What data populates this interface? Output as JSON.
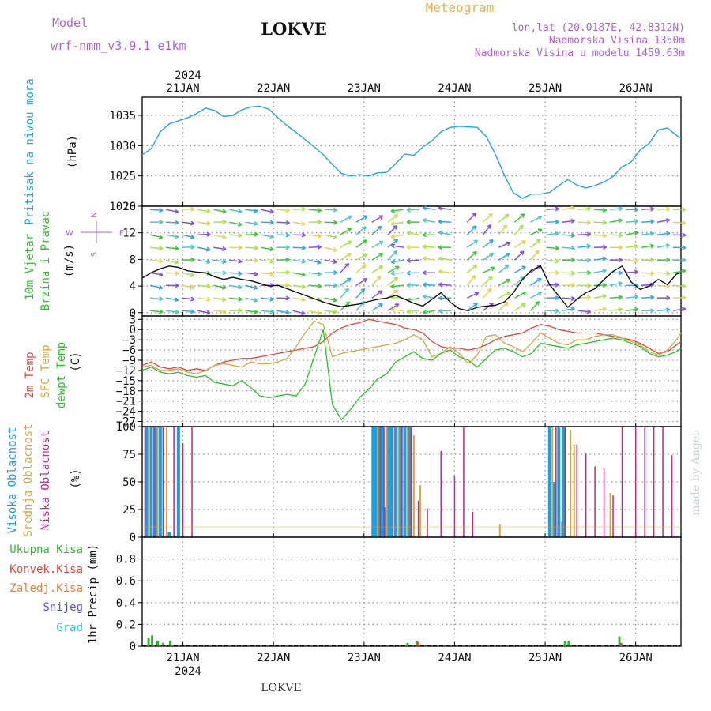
{
  "header": {
    "model_label": "Model",
    "model_name": "wrf-nmm_v3.9.1 e1km",
    "station": "LOKVE",
    "product": "Meteogram",
    "coords": "lon,lat (20.0187E, 42.8312N)",
    "elevation": "Nadmorska Visina 1350m",
    "model_elevation": "Nadmorska Visina u modelu 1459.63m"
  },
  "footer": {
    "station": "LOKVE",
    "credit": "made by Angel"
  },
  "time_axis": {
    "year": "2024",
    "labels": [
      "21JAN",
      "22JAN",
      "23JAN",
      "24JAN",
      "25JAN",
      "26JAN"
    ],
    "day_positions": [
      1,
      2,
      3,
      4,
      5,
      6
    ],
    "range": [
      0.55,
      6.5
    ]
  },
  "colors": {
    "pressure": "#1fa5e0",
    "t2m": "#e8453c",
    "tsfc": "#d6a540",
    "dewpoint": "#22c722",
    "cloud_high": "#1b9fe0",
    "cloud_mid": "#d6a540",
    "cloud_low": "#c0288c",
    "precip_total": "#2eb82e",
    "precip_conv": "#e8453c",
    "precip_frozen": "#f07a3a",
    "precip_snow": "#5050d8",
    "precip_graupel": "#30c0c0"
  },
  "chart_data": [
    {
      "type": "line",
      "name": "pressure",
      "ylabel": [
        "Pritisak na nivou mora",
        "(hPa)"
      ],
      "ylim": [
        1020,
        1038
      ],
      "yticks": [
        1020,
        1025,
        1030,
        1035
      ],
      "grid": true,
      "series": [
        {
          "key": "pressure",
          "x": [
            0.55,
            0.65,
            0.75,
            0.85,
            0.95,
            1.05,
            1.15,
            1.25,
            1.35,
            1.45,
            1.55,
            1.65,
            1.75,
            1.85,
            1.95,
            2.05,
            2.15,
            2.25,
            2.35,
            2.45,
            2.55,
            2.65,
            2.75,
            2.85,
            2.95,
            3.05,
            3.15,
            3.25,
            3.35,
            3.45,
            3.55,
            3.65,
            3.75,
            3.85,
            3.95,
            4.05,
            4.15,
            4.25,
            4.35,
            4.45,
            4.55,
            4.65,
            4.75,
            4.85,
            4.95,
            5.05,
            5.15,
            5.25,
            5.35,
            5.45,
            5.55,
            5.65,
            5.75,
            5.85,
            5.95,
            6.05,
            6.15,
            6.25,
            6.35,
            6.45,
            6.5
          ],
          "values": [
            1028.5,
            1029.5,
            1032.3,
            1033.6,
            1034.1,
            1034.6,
            1035.3,
            1036.2,
            1035.8,
            1034.8,
            1035.0,
            1035.9,
            1036.4,
            1036.5,
            1036.0,
            1034.6,
            1033.3,
            1032.2,
            1031.0,
            1029.8,
            1028.5,
            1026.9,
            1025.4,
            1025.0,
            1025.2,
            1025.0,
            1025.5,
            1025.6,
            1027.0,
            1028.6,
            1028.4,
            1029.8,
            1030.8,
            1032.3,
            1033.0,
            1033.2,
            1033.1,
            1033.0,
            1031.5,
            1028.6,
            1025.1,
            1022.2,
            1021.3,
            1022.0,
            1022.0,
            1022.3,
            1023.4,
            1024.4,
            1023.5,
            1023.0,
            1023.4,
            1024.0,
            1024.9,
            1026.5,
            1027.3,
            1029.3,
            1030.4,
            1032.6,
            1032.9,
            1031.7,
            1031.2
          ]
        }
      ]
    },
    {
      "type": "line",
      "name": "wind",
      "ylabel": [
        "10m Vjetar",
        "Brzina i Pravac",
        "(m/s)"
      ],
      "compass": [
        "N",
        "E",
        "S",
        "W"
      ],
      "ylim": [
        -0.5,
        16
      ],
      "yticks": [
        0,
        4,
        8,
        12,
        16
      ],
      "grid": true,
      "series": [
        {
          "key": "wind_speed",
          "x": [
            0.55,
            0.65,
            0.75,
            0.85,
            0.95,
            1.05,
            1.15,
            1.25,
            1.35,
            1.45,
            1.55,
            1.65,
            1.75,
            1.85,
            1.95,
            2.05,
            2.15,
            2.25,
            2.35,
            2.45,
            2.55,
            2.65,
            2.75,
            2.85,
            2.95,
            3.05,
            3.15,
            3.25,
            3.35,
            3.45,
            3.55,
            3.65,
            3.75,
            3.85,
            3.95,
            4.05,
            4.15,
            4.25,
            4.35,
            4.45,
            4.55,
            4.65,
            4.75,
            4.85,
            4.95,
            5.05,
            5.15,
            5.25,
            5.35,
            5.45,
            5.55,
            5.65,
            5.75,
            5.85,
            5.95,
            6.05,
            6.15,
            6.25,
            6.35,
            6.45,
            6.5
          ],
          "values": [
            5.2,
            6.0,
            6.6,
            7.0,
            6.8,
            6.3,
            6.1,
            6.0,
            5.4,
            5.0,
            5.3,
            5.0,
            4.8,
            4.4,
            4.0,
            4.1,
            3.6,
            3.1,
            2.6,
            2.1,
            1.6,
            1.2,
            0.9,
            1.1,
            1.3,
            1.7,
            2.0,
            2.2,
            2.6,
            2.0,
            1.4,
            1.0,
            2.0,
            3.0,
            1.6,
            0.6,
            0.3,
            0.8,
            1.0,
            1.1,
            1.6,
            3.0,
            5.0,
            6.4,
            7.0,
            4.2,
            2.5,
            0.8,
            2.0,
            3.0,
            3.6,
            5.0,
            6.2,
            7.0,
            4.6,
            3.5,
            4.0,
            5.0,
            4.2,
            5.8,
            6.0
          ]
        }
      ]
    },
    {
      "type": "line",
      "name": "temperature",
      "ylabel": [
        "2m Temp",
        "SFC Temp",
        "dewpt Temp",
        "(C)"
      ],
      "ylim": [
        -28.5,
        4
      ],
      "yticks": [
        3,
        0,
        -3,
        -6,
        -9,
        -12,
        -15,
        -18,
        -21,
        -24,
        -27
      ],
      "grid": true,
      "series": [
        {
          "key": "t2m",
          "x": [
            0.55,
            0.65,
            0.75,
            0.85,
            0.95,
            1.05,
            1.15,
            1.25,
            1.35,
            1.45,
            1.55,
            1.65,
            1.75,
            1.85,
            1.95,
            2.05,
            2.15,
            2.25,
            2.35,
            2.45,
            2.55,
            2.65,
            2.75,
            2.85,
            2.95,
            3.05,
            3.15,
            3.25,
            3.35,
            3.45,
            3.55,
            3.65,
            3.75,
            3.85,
            3.95,
            4.05,
            4.15,
            4.25,
            4.35,
            4.45,
            4.55,
            4.65,
            4.75,
            4.85,
            4.95,
            5.05,
            5.15,
            5.25,
            5.35,
            5.45,
            5.55,
            5.65,
            5.75,
            5.85,
            5.95,
            6.05,
            6.15,
            6.25,
            6.35,
            6.45,
            6.5
          ],
          "values": [
            -10.5,
            -9.5,
            -11.0,
            -11.5,
            -11.0,
            -12.0,
            -11.5,
            -12.0,
            -10.5,
            -9.5,
            -9.0,
            -8.5,
            -8.5,
            -8.0,
            -7.5,
            -7.0,
            -6.5,
            -6.0,
            -5.5,
            -5.0,
            -3.5,
            -1.0,
            0.5,
            1.5,
            2.0,
            3.0,
            2.5,
            2.0,
            1.5,
            0.5,
            0.0,
            -1.0,
            -3.5,
            -5.0,
            -5.5,
            -5.5,
            -6.0,
            -5.5,
            -4.5,
            -3.0,
            -2.0,
            -1.5,
            -1.0,
            0.5,
            1.5,
            1.0,
            0.0,
            -0.5,
            -1.0,
            -1.0,
            -1.0,
            -1.5,
            -2.0,
            -2.5,
            -3.0,
            -4.0,
            -5.5,
            -7.0,
            -6.5,
            -4.5,
            -3.5
          ]
        },
        {
          "key": "tsfc",
          "x": [
            0.55,
            0.65,
            0.75,
            0.85,
            0.95,
            1.05,
            1.15,
            1.25,
            1.35,
            1.45,
            1.55,
            1.65,
            1.75,
            1.85,
            1.95,
            2.05,
            2.15,
            2.25,
            2.35,
            2.45,
            2.55,
            2.65,
            2.75,
            2.85,
            2.95,
            3.05,
            3.15,
            3.25,
            3.35,
            3.45,
            3.55,
            3.65,
            3.75,
            3.85,
            3.95,
            4.05,
            4.15,
            4.25,
            4.35,
            4.45,
            4.55,
            4.65,
            4.75,
            4.85,
            4.95,
            5.05,
            5.15,
            5.25,
            5.35,
            5.45,
            5.55,
            5.65,
            5.75,
            5.85,
            5.95,
            6.05,
            6.15,
            6.25,
            6.35,
            6.45,
            6.5
          ],
          "values": [
            -11.0,
            -10.5,
            -12.0,
            -12.0,
            -11.5,
            -12.5,
            -13.0,
            -12.0,
            -10.5,
            -10.0,
            -10.5,
            -11.0,
            -9.5,
            -10.0,
            -10.0,
            -9.5,
            -8.5,
            -5.0,
            -1.0,
            2.5,
            1.5,
            -8.0,
            -7.0,
            -6.5,
            -6.0,
            -5.5,
            -5.0,
            -4.5,
            -4.0,
            -3.0,
            -1.5,
            -3.0,
            -8.0,
            -7.0,
            -5.0,
            -7.0,
            -10.0,
            -7.5,
            -2.0,
            -1.5,
            -4.0,
            -5.0,
            -6.5,
            -4.0,
            -1.0,
            -2.5,
            -4.0,
            -4.5,
            -3.0,
            -3.0,
            -2.0,
            -1.5,
            -1.5,
            -2.5,
            -3.5,
            -4.5,
            -6.5,
            -7.5,
            -6.0,
            -3.0,
            -1.0
          ]
        },
        {
          "key": "dewpoint",
          "x": [
            0.55,
            0.65,
            0.75,
            0.85,
            0.95,
            1.05,
            1.15,
            1.25,
            1.35,
            1.45,
            1.55,
            1.65,
            1.75,
            1.85,
            1.95,
            2.05,
            2.15,
            2.25,
            2.35,
            2.45,
            2.55,
            2.65,
            2.75,
            2.85,
            2.95,
            3.05,
            3.15,
            3.25,
            3.35,
            3.45,
            3.55,
            3.65,
            3.75,
            3.85,
            3.95,
            4.05,
            4.15,
            4.25,
            4.35,
            4.45,
            4.55,
            4.65,
            4.75,
            4.85,
            4.95,
            5.05,
            5.15,
            5.25,
            5.35,
            5.45,
            5.55,
            5.65,
            5.75,
            5.85,
            5.95,
            6.05,
            6.15,
            6.25,
            6.35,
            6.45,
            6.5
          ],
          "values": [
            -12.0,
            -11.0,
            -12.5,
            -13.0,
            -12.5,
            -13.5,
            -14.0,
            -13.5,
            -15.5,
            -16.0,
            -16.5,
            -15.0,
            -17.0,
            -19.5,
            -20.0,
            -19.5,
            -19.0,
            -19.5,
            -16.0,
            -8.0,
            0.0,
            -22.0,
            -26.5,
            -23.5,
            -20.0,
            -17.5,
            -14.5,
            -13.0,
            -9.5,
            -8.0,
            -6.5,
            -8.5,
            -9.0,
            -7.0,
            -6.0,
            -8.0,
            -9.0,
            -11.0,
            -8.5,
            -6.0,
            -5.5,
            -6.5,
            -8.0,
            -7.0,
            -4.0,
            -4.5,
            -5.0,
            -5.5,
            -4.5,
            -4.0,
            -3.5,
            -3.0,
            -2.5,
            -3.0,
            -4.0,
            -5.0,
            -7.0,
            -8.0,
            -7.5,
            -6.5,
            -5.5
          ]
        }
      ]
    },
    {
      "type": "bar",
      "name": "clouds",
      "ylabel": [
        "Visoka Oblacnost",
        "Srednja Oblacnost",
        "Niska Oblacnost",
        "(%)"
      ],
      "ylim": [
        0,
        100
      ],
      "yticks": [
        0,
        25,
        50,
        75,
        100
      ],
      "grid": true,
      "series": [
        {
          "key": "cloud_high",
          "x": [
            0.6,
            0.65,
            0.7,
            0.75,
            0.85,
            0.95,
            3.1,
            3.13,
            3.16,
            3.2,
            3.24,
            3.27,
            3.3,
            3.35,
            3.4,
            3.45,
            3.5,
            5.05,
            5.1,
            5.15,
            5.2
          ],
          "values": [
            100,
            100,
            100,
            100,
            5,
            100,
            100,
            100,
            100,
            100,
            27,
            100,
            100,
            100,
            100,
            100,
            100,
            100,
            50,
            100,
            100
          ]
        },
        {
          "key": "cloud_mid",
          "x": [
            0.62,
            0.72,
            0.82,
            3.15,
            3.25,
            3.38,
            3.48,
            3.55,
            3.62,
            4.5,
            5.08,
            5.18,
            5.28,
            5.32,
            5.72
          ],
          "values": [
            100,
            100,
            100,
            100,
            100,
            100,
            100,
            92,
            47,
            12,
            100,
            14,
            97,
            84,
            40
          ]
        },
        {
          "key": "cloud_low",
          "x": [
            0.58,
            0.68,
            0.78,
            0.9,
            1.0,
            1.1,
            3.18,
            3.22,
            3.32,
            3.42,
            3.52,
            3.6,
            3.7,
            3.85,
            4.0,
            4.1,
            4.2,
            5.12,
            5.22,
            5.35,
            5.45,
            5.55,
            5.65,
            5.75,
            5.85,
            6.0,
            6.1,
            6.2,
            6.3,
            6.4
          ],
          "values": [
            100,
            100,
            100,
            100,
            85,
            100,
            100,
            100,
            100,
            100,
            100,
            33,
            26,
            78,
            55,
            100,
            23,
            100,
            100,
            84,
            76,
            64,
            62,
            38,
            100,
            100,
            100,
            100,
            100,
            74
          ]
        }
      ]
    },
    {
      "type": "bar",
      "name": "precipitation",
      "legend": [
        "Ukupna Kisa",
        "Konvek.Kisa",
        "Zaledj.Kisa",
        "Snijeg",
        "Grad"
      ],
      "ylabel": [
        "1hr Precip (mm)"
      ],
      "ylim": [
        0,
        1.0
      ],
      "yticks": [
        0,
        0.2,
        0.4,
        0.6,
        0.8
      ],
      "grid": true,
      "series": [
        {
          "key": "precip_total",
          "x": [
            0.62,
            0.66,
            0.72,
            0.78,
            0.86,
            3.48,
            3.58,
            5.22,
            5.26,
            5.82,
            6.08
          ],
          "values": [
            0.08,
            0.1,
            0.05,
            0.03,
            0.05,
            0.03,
            0.05,
            0.05,
            0.05,
            0.09,
            0.01
          ]
        },
        {
          "key": "precip_conv",
          "x": [
            3.6,
            5.84
          ],
          "values": [
            0.04,
            0.03
          ]
        }
      ]
    }
  ]
}
